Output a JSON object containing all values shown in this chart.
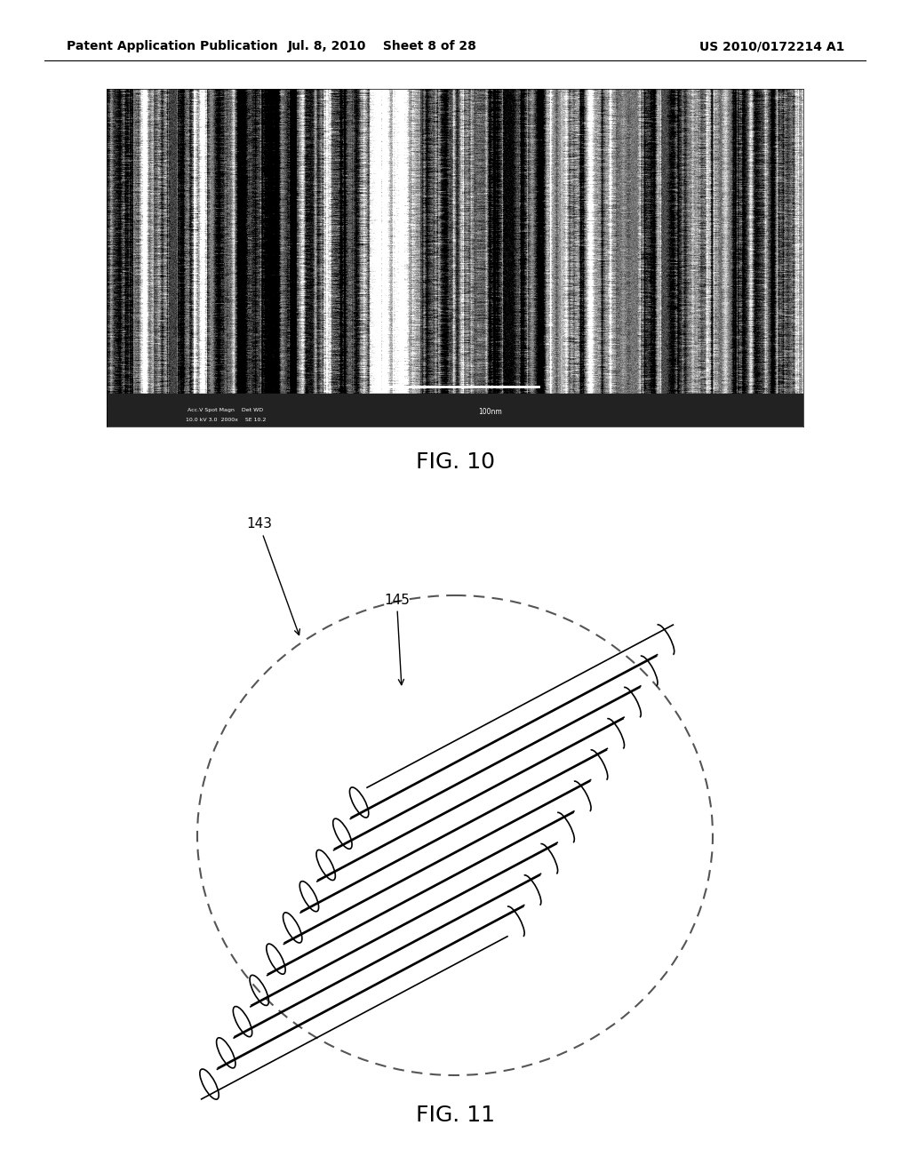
{
  "header_left": "Patent Application Publication",
  "header_mid": "Jul. 8, 2010   Sheet 8 of 28",
  "header_right": "US 2010/0172214 A1",
  "fig10_label": "FIG. 10",
  "fig11_label": "FIG. 11",
  "label_143": "143",
  "label_145": "145",
  "bg_color": "#ffffff",
  "text_color": "#000000",
  "num_tubes": 10,
  "tube_color": "#000000",
  "header_fontsize": 10,
  "fig_label_fontsize": 18
}
